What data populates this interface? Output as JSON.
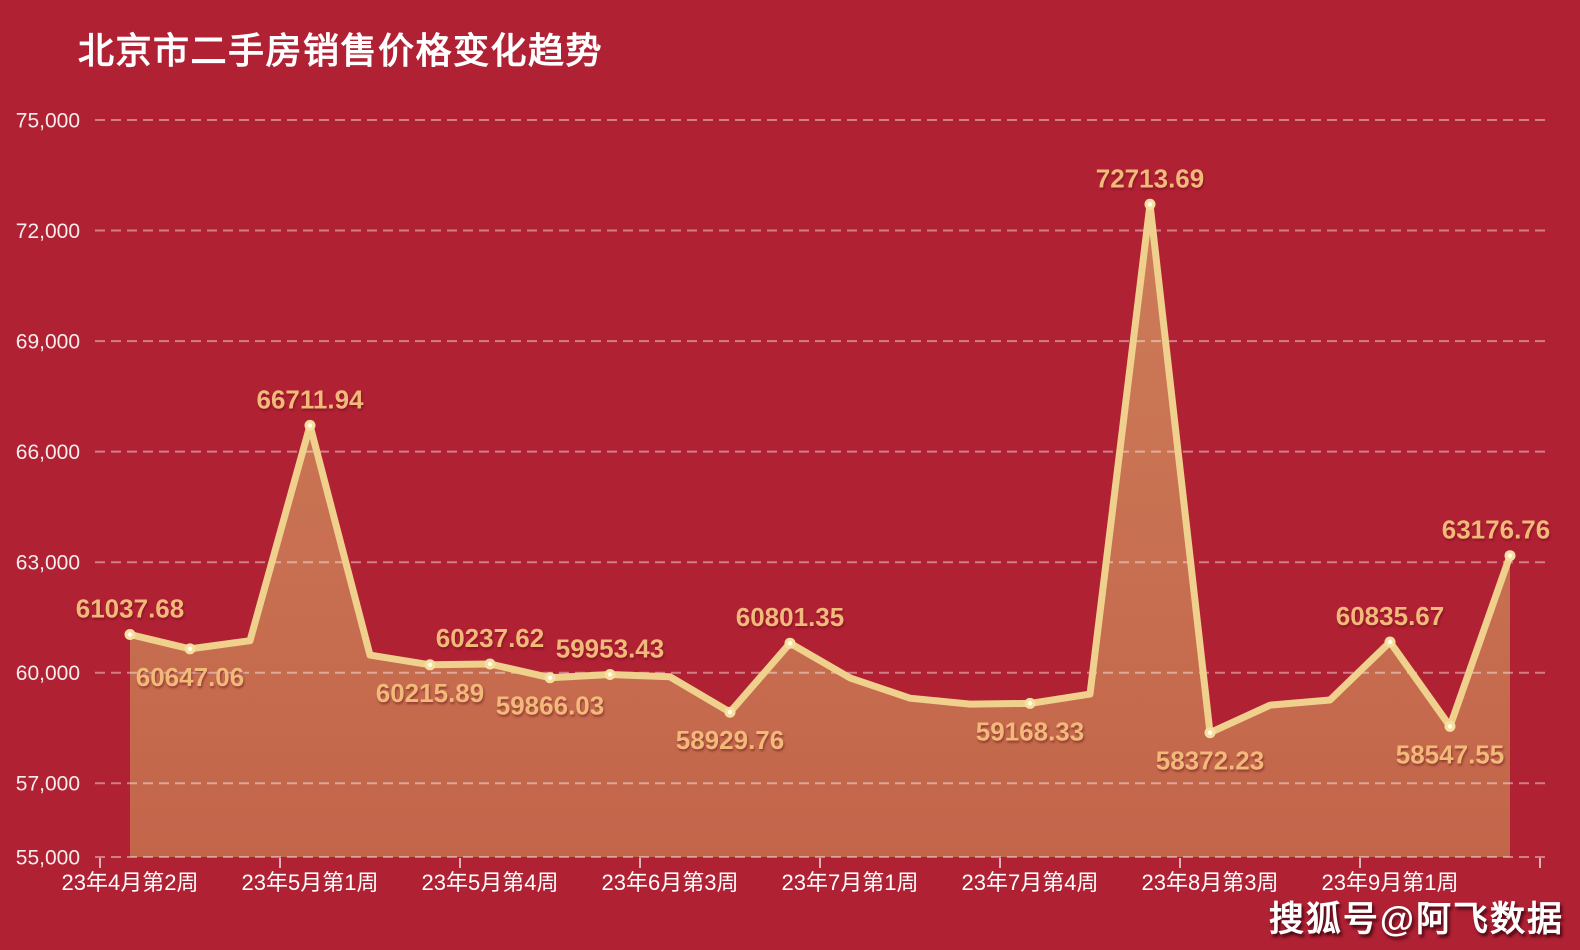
{
  "watermark": "搜狐号@阿飞数据",
  "colors": {
    "background": "#b12134",
    "area_top": "#cd7c59",
    "area_bottom": "#c3654a",
    "line": "#efd08c",
    "marker_outer": "#f6df9e",
    "marker_center": "#fffdf0",
    "value_label": "#f2ba7a",
    "y_label": "#f6eceb",
    "x_label": "#ffffff",
    "grid": "rgba(255,255,255,0.42)",
    "axis_tick": "rgba(255,255,255,0.65)"
  },
  "chart_data": {
    "type": "area",
    "title": "北京市二手房销售价格变化趋势",
    "xlabel": "",
    "ylabel": "",
    "ylim": [
      55000,
      75000
    ],
    "grid": "dashed-horizontal",
    "legend": "none",
    "y_axis": {
      "ticks": [
        {
          "value": 55000,
          "label": "55,000"
        },
        {
          "value": 57000,
          "label": "57,000"
        },
        {
          "value": 60000,
          "label": "60,000"
        },
        {
          "value": 63000,
          "label": "63,000"
        },
        {
          "value": 66000,
          "label": "66,000"
        },
        {
          "value": 69000,
          "label": "69,000"
        },
        {
          "value": 72000,
          "label": "72,000"
        },
        {
          "value": 75000,
          "label": "75,000"
        }
      ]
    },
    "x_axis": {
      "label_every": 3,
      "labels": [
        {
          "point_index": 0,
          "label": "23年4月第2周"
        },
        {
          "point_index": 3,
          "label": "23年5月第1周"
        },
        {
          "point_index": 6,
          "label": "23年5月第4周"
        },
        {
          "point_index": 9,
          "label": "23年6月第3周"
        },
        {
          "point_index": 12,
          "label": "23年7月第1周"
        },
        {
          "point_index": 15,
          "label": "23年7月第4周"
        },
        {
          "point_index": 18,
          "label": "23年8月第3周"
        },
        {
          "point_index": 21,
          "label": "23年9月第1周"
        }
      ]
    },
    "series": [
      {
        "points": [
          {
            "value": 61037.68,
            "data_label": "61037.68",
            "label_side": "above"
          },
          {
            "value": 60647.06,
            "data_label": "60647.06",
            "label_side": "below"
          },
          {
            "value": 60870,
            "data_label": null,
            "estimated": true
          },
          {
            "value": 66711.94,
            "data_label": "66711.94",
            "label_side": "above"
          },
          {
            "value": 60480,
            "data_label": null,
            "estimated": true
          },
          {
            "value": 60215.89,
            "data_label": "60215.89",
            "label_side": "below"
          },
          {
            "value": 60237.62,
            "data_label": "60237.62",
            "label_side": "above"
          },
          {
            "value": 59866.03,
            "data_label": "59866.03",
            "label_side": "below"
          },
          {
            "value": 59953.43,
            "data_label": "59953.43",
            "label_side": "above"
          },
          {
            "value": 59890,
            "data_label": null,
            "estimated": true
          },
          {
            "value": 58929.76,
            "data_label": "58929.76",
            "label_side": "below"
          },
          {
            "value": 60801.35,
            "data_label": "60801.35",
            "label_side": "above"
          },
          {
            "value": 59860,
            "data_label": null,
            "estimated": true
          },
          {
            "value": 59310,
            "data_label": null,
            "estimated": true
          },
          {
            "value": 59150,
            "data_label": null,
            "estimated": true
          },
          {
            "value": 59168.33,
            "data_label": "59168.33",
            "label_side": "below"
          },
          {
            "value": 59420,
            "data_label": null,
            "estimated": true
          },
          {
            "value": 72713.69,
            "data_label": "72713.69",
            "label_side": "above"
          },
          {
            "value": 58372.23,
            "data_label": "58372.23",
            "label_side": "below"
          },
          {
            "value": 59120,
            "data_label": null,
            "estimated": true
          },
          {
            "value": 59260,
            "data_label": null,
            "estimated": true
          },
          {
            "value": 60835.67,
            "data_label": "60835.67",
            "label_side": "above"
          },
          {
            "value": 58547.55,
            "data_label": "58547.55",
            "label_side": "below"
          },
          {
            "value": 63176.76,
            "data_label": "63176.76",
            "label_side": "above"
          }
        ]
      }
    ]
  }
}
